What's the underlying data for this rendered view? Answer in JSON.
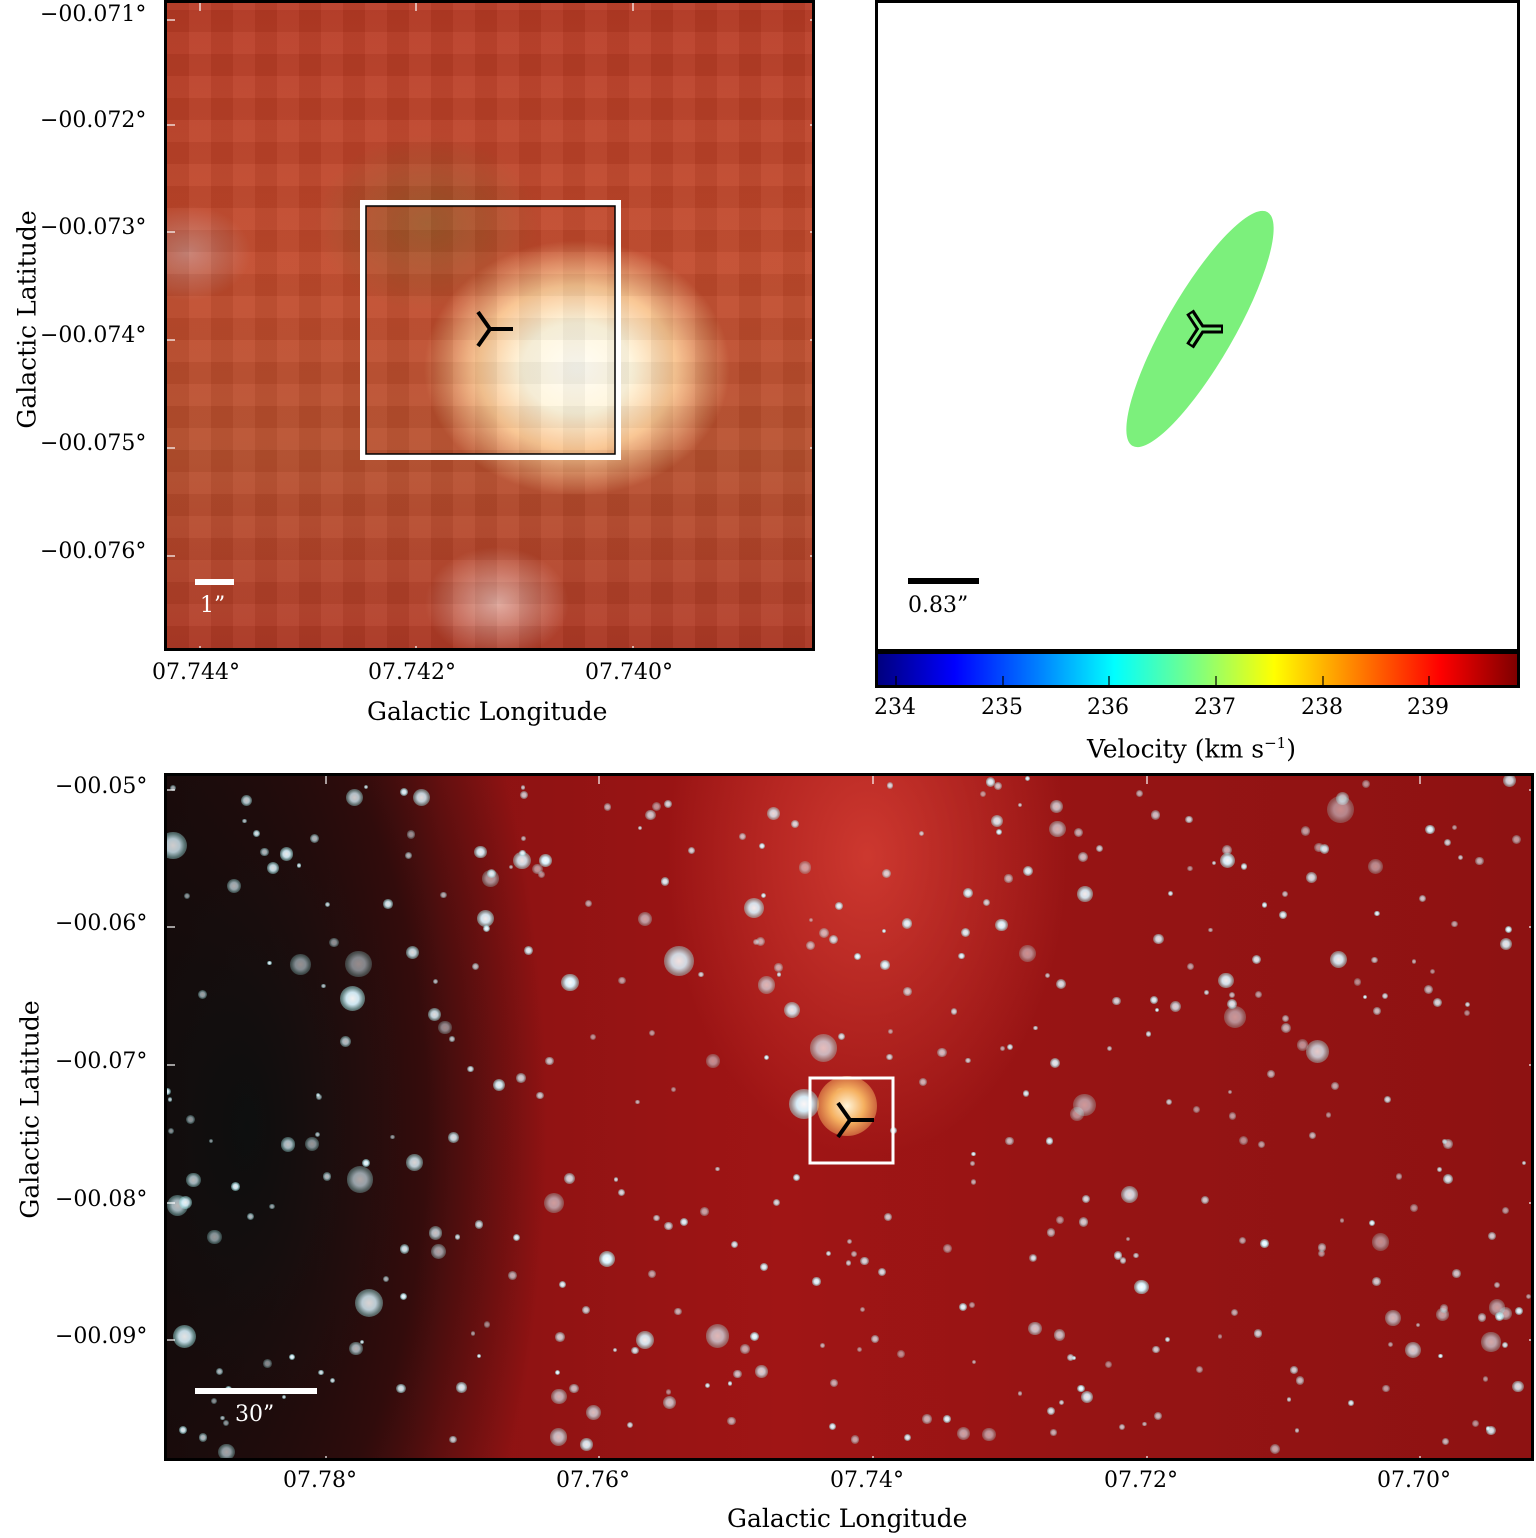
{
  "top_left": {
    "y_ticks": [
      "−00.071°",
      "−00.072°",
      "−00.073°",
      "−00.074°",
      "−00.075°",
      "−00.076°"
    ],
    "x_ticks": [
      "07.744°",
      "07.742°",
      "07.740°"
    ],
    "ylabel": "Galactic Latitude",
    "xlabel": "Galactic Longitude",
    "scalebar": "1”"
  },
  "top_right": {
    "scalebar": "0.83”",
    "ellipse_color": "#7cf07c",
    "colorbar": {
      "ticks": [
        "234",
        "235",
        "236",
        "237",
        "238",
        "239"
      ],
      "label": "Velocity (km s",
      "label_sup": "−1",
      "label_close": ")"
    }
  },
  "bottom": {
    "y_ticks": [
      "−00.05°",
      "−00.06°",
      "−00.07°",
      "−00.08°",
      "−00.09°"
    ],
    "x_ticks": [
      "07.78°",
      "07.76°",
      "07.74°",
      "07.72°",
      "07.70°"
    ],
    "ylabel": "Galactic Latitude",
    "xlabel": "Galactic Longitude",
    "scalebar": "30”"
  }
}
